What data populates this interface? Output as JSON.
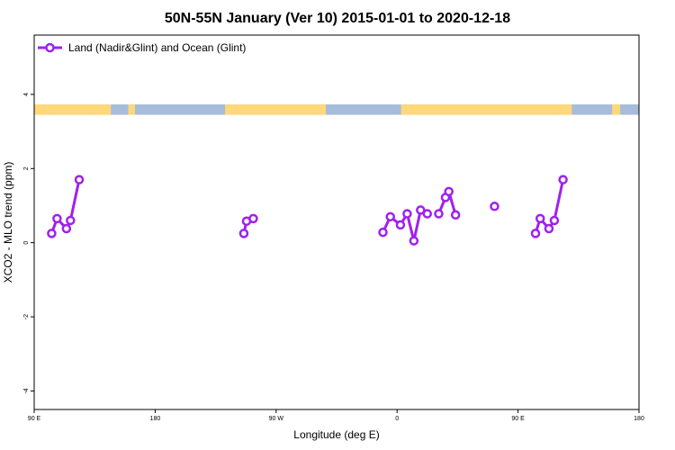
{
  "chart_data": {
    "type": "line",
    "title": "50N-55N January (Ver 10)   2015-01-01 to 2020-12-18",
    "xlabel": "Longitude (deg E)",
    "ylabel": "XCO2 - MLO trend (ppm)",
    "xlim": [
      90,
      540
    ],
    "ylim": [
      -4.5,
      5.6
    ],
    "x_ticks": [
      {
        "value": 90,
        "label": "90 E"
      },
      {
        "value": 180,
        "label": "180"
      },
      {
        "value": 270,
        "label": "90 W"
      },
      {
        "value": 360,
        "label": "0"
      },
      {
        "value": 450,
        "label": "90 E"
      },
      {
        "value": 540,
        "label": "180"
      }
    ],
    "y_ticks": [
      {
        "value": -4,
        "label": "-4"
      },
      {
        "value": -2,
        "label": "-2"
      },
      {
        "value": 0,
        "label": "0"
      },
      {
        "value": 2,
        "label": "2"
      },
      {
        "value": 4,
        "label": "4"
      }
    ],
    "legend": {
      "position": "top-left"
    },
    "series": [
      {
        "name": "Land (Nadir&Glint) and Ocean (Glint)",
        "color": "#a020f0",
        "segments": [
          [
            [
              103,
              0.25
            ],
            [
              107,
              0.65
            ],
            [
              114,
              0.38
            ],
            [
              117,
              0.6
            ],
            [
              123.5,
              1.7
            ]
          ],
          [
            [
              246,
              0.25
            ],
            [
              248,
              0.58
            ],
            [
              253,
              0.65
            ]
          ],
          [
            [
              349.5,
              0.28
            ],
            [
              355,
              0.7
            ],
            [
              362.5,
              0.48
            ],
            [
              367.5,
              0.78
            ],
            [
              372.5,
              0.05
            ],
            [
              377.5,
              0.88
            ],
            [
              382.5,
              0.78
            ]
          ],
          [
            [
              391,
              0.78
            ],
            [
              396,
              1.22
            ],
            [
              398.5,
              1.38
            ],
            [
              403.5,
              0.75
            ]
          ],
          [
            [
              432.5,
              0.98
            ]
          ],
          [
            [
              463,
              0.25
            ],
            [
              466.5,
              0.65
            ],
            [
              473,
              0.38
            ],
            [
              477,
              0.6
            ],
            [
              483.5,
              1.7
            ]
          ]
        ]
      }
    ],
    "land_ocean_strip": {
      "y_range": [
        3.45,
        3.73
      ],
      "land_color": "#ffd87a",
      "ocean_color": "#a7bcda",
      "land_spans": [
        [
          90,
          147
        ],
        [
          160,
          165
        ],
        [
          232,
          307
        ],
        [
          363,
          490
        ],
        [
          520,
          526
        ]
      ]
    }
  }
}
